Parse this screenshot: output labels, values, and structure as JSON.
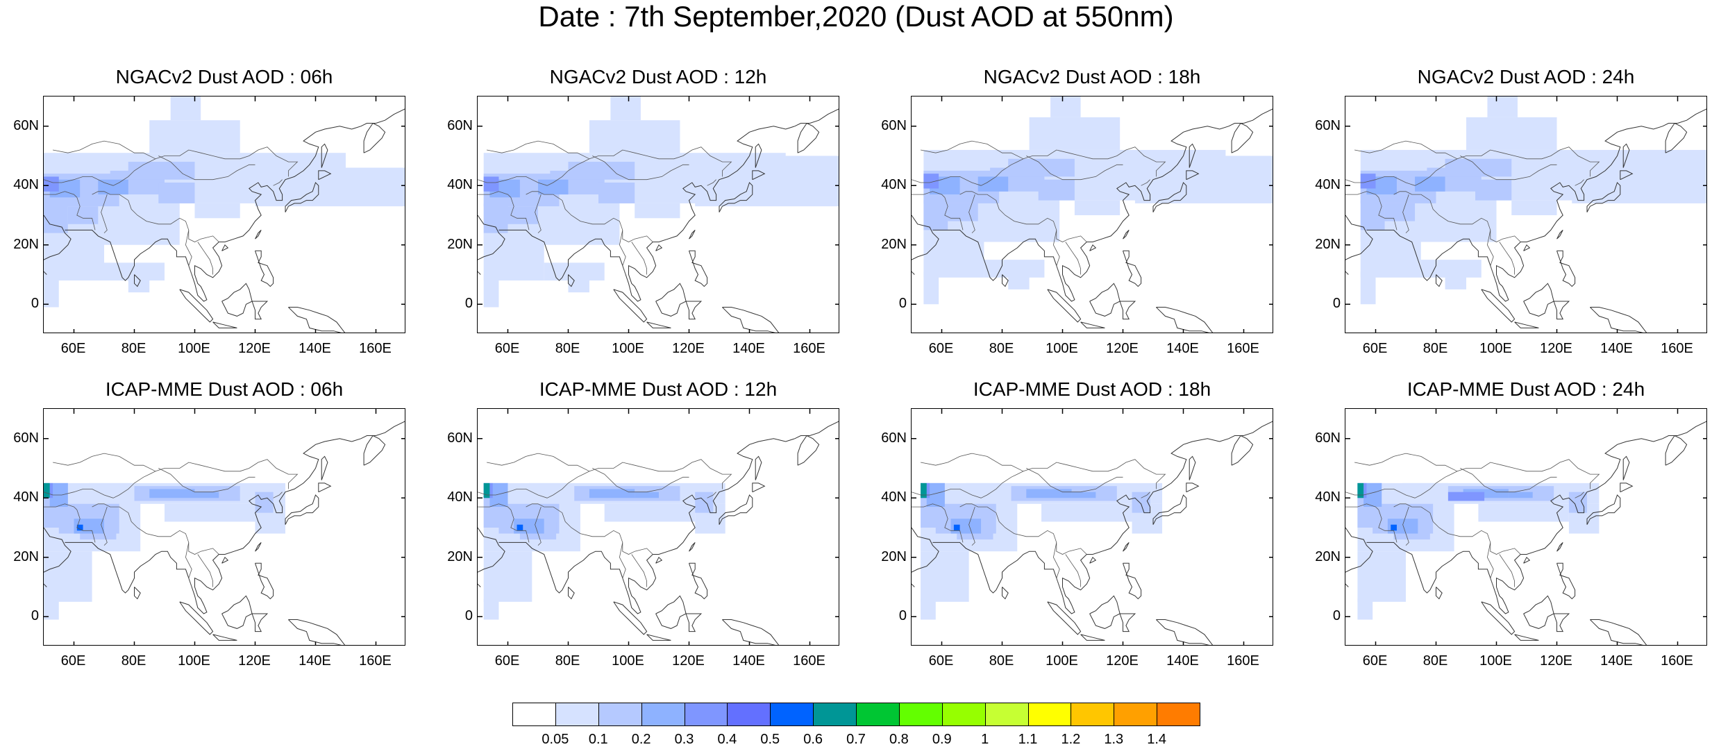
{
  "title": "Date : 7th September,2020 (Dust AOD at 550nm)",
  "panels": [
    {
      "title": "NGACv2 Dust AOD : 06h",
      "model": "NGACv2",
      "hour": "06h"
    },
    {
      "title": "NGACv2 Dust AOD : 12h",
      "model": "NGACv2",
      "hour": "12h"
    },
    {
      "title": "NGACv2 Dust AOD : 18h",
      "model": "NGACv2",
      "hour": "18h"
    },
    {
      "title": "NGACv2 Dust AOD : 24h",
      "model": "NGACv2",
      "hour": "24h"
    },
    {
      "title": "ICAP-MME Dust AOD : 06h",
      "model": "ICAP-MME",
      "hour": "06h"
    },
    {
      "title": "ICAP-MME Dust AOD : 12h",
      "model": "ICAP-MME",
      "hour": "12h"
    },
    {
      "title": "ICAP-MME Dust AOD : 18h",
      "model": "ICAP-MME",
      "hour": "18h"
    },
    {
      "title": "ICAP-MME Dust AOD : 24h",
      "model": "ICAP-MME",
      "hour": "24h"
    }
  ],
  "map_extent": {
    "lon": [
      50,
      170
    ],
    "lat": [
      -10,
      70
    ]
  },
  "lat_ticks": [
    {
      "value": 60,
      "label": "60N"
    },
    {
      "value": 40,
      "label": "40N"
    },
    {
      "value": 20,
      "label": "20N"
    },
    {
      "value": 0,
      "label": "0"
    }
  ],
  "lon_ticks": [
    {
      "value": 60,
      "label": "60E"
    },
    {
      "value": 80,
      "label": "80E"
    },
    {
      "value": 100,
      "label": "100E"
    },
    {
      "value": 120,
      "label": "120E"
    },
    {
      "value": 140,
      "label": "140E"
    },
    {
      "value": 160,
      "label": "160E"
    }
  ],
  "colorbar": {
    "labels": [
      "0.05",
      "0.1",
      "0.2",
      "0.3",
      "0.4",
      "0.5",
      "0.6",
      "0.7",
      "0.8",
      "0.9",
      "1",
      "1.1",
      "1.2",
      "1.3",
      "1.4"
    ],
    "colors": [
      "#ffffff",
      "#d6e2ff",
      "#b5c9ff",
      "#8eb2ff",
      "#7f96ff",
      "#6370ff",
      "#0063ff",
      "#009696",
      "#00c633",
      "#63ff00",
      "#96ff00",
      "#c6ff33",
      "#ffff00",
      "#ffc600",
      "#ffa000",
      "#ff7c00",
      "#ff1900"
    ]
  }
}
